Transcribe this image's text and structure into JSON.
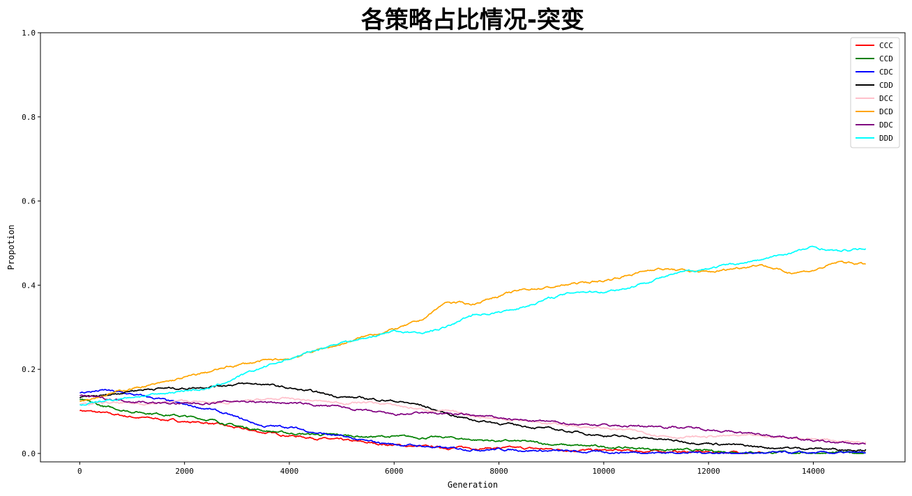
{
  "chart_data": {
    "type": "line",
    "title": "各策略占比情况-突变",
    "xlabel": "Generation",
    "ylabel": "Propotion",
    "xlim": [
      -750,
      15750
    ],
    "ylim": [
      -0.02,
      1.0
    ],
    "xticks": [
      0,
      2000,
      4000,
      6000,
      8000,
      10000,
      12000,
      14000
    ],
    "yticks": [
      0.0,
      0.2,
      0.4,
      0.6,
      0.8,
      1.0
    ],
    "xtick_labels": [
      "0",
      "2000",
      "4000",
      "6000",
      "8000",
      "10000",
      "12000",
      "14000"
    ],
    "ytick_labels": [
      "0.0",
      "0.2",
      "0.4",
      "0.6",
      "0.8",
      "1.0"
    ],
    "grid": false,
    "legend_position": "top-right",
    "series": [
      {
        "name": "CCC",
        "color": "#ff0000",
        "x": [
          0,
          500,
          1000,
          1500,
          2000,
          2500,
          3000,
          3500,
          4000,
          4500,
          5000,
          5500,
          6000,
          6500,
          7000,
          7500,
          8000,
          8500,
          9000,
          9500,
          10000,
          10500,
          11000,
          11500,
          12000,
          12500,
          13000
        ],
        "y": [
          0.103,
          0.095,
          0.087,
          0.082,
          0.076,
          0.072,
          0.06,
          0.05,
          0.043,
          0.037,
          0.031,
          0.025,
          0.02,
          0.016,
          0.014,
          0.013,
          0.013,
          0.012,
          0.01,
          0.008,
          0.007,
          0.006,
          0.005,
          0.004,
          0.003,
          0.003,
          0.002
        ]
      },
      {
        "name": "CCD",
        "color": "#008000",
        "x": [
          0,
          500,
          1000,
          1500,
          2000,
          2500,
          3000,
          3500,
          4000,
          4500,
          5000,
          5500,
          6000,
          6500,
          7000,
          7500,
          8000,
          8500,
          9000,
          9500,
          10000,
          10500,
          11000,
          11500,
          12000,
          12500,
          13000,
          13500,
          14000,
          14500,
          15000
        ],
        "y": [
          0.128,
          0.11,
          0.1,
          0.095,
          0.088,
          0.08,
          0.065,
          0.055,
          0.048,
          0.045,
          0.043,
          0.04,
          0.04,
          0.038,
          0.038,
          0.033,
          0.03,
          0.028,
          0.022,
          0.018,
          0.016,
          0.013,
          0.01,
          0.008,
          0.006,
          0.004,
          0.003,
          0.002,
          0.002,
          0.001,
          0.001
        ]
      },
      {
        "name": "CDC",
        "color": "#0000ff",
        "x": [
          0,
          500,
          1000,
          1500,
          2000,
          2500,
          3000,
          3500,
          4000,
          4500,
          5000,
          5500,
          6000,
          6500,
          7000,
          7500,
          8000,
          8500,
          9000,
          9500,
          10000,
          10500,
          11000,
          11500,
          12000,
          12500,
          13000,
          13500,
          14000,
          14500,
          15000
        ],
        "y": [
          0.145,
          0.15,
          0.14,
          0.13,
          0.115,
          0.105,
          0.085,
          0.065,
          0.063,
          0.05,
          0.04,
          0.028,
          0.022,
          0.018,
          0.012,
          0.01,
          0.01,
          0.008,
          0.006,
          0.004,
          0.003,
          0.003,
          0.002,
          0.002,
          0.002,
          0.001,
          0.001,
          0.001,
          0.001,
          0.001,
          0.001
        ]
      },
      {
        "name": "CDD",
        "color": "#000000",
        "x": [
          0,
          500,
          1000,
          1500,
          2000,
          2500,
          3000,
          3500,
          4000,
          4500,
          5000,
          5500,
          6000,
          6500,
          7000,
          7500,
          8000,
          8500,
          9000,
          9500,
          10000,
          10500,
          11000,
          11500,
          12000,
          12500,
          13000,
          13500,
          14000,
          14500,
          15000
        ],
        "y": [
          0.132,
          0.138,
          0.15,
          0.155,
          0.155,
          0.16,
          0.165,
          0.165,
          0.155,
          0.145,
          0.135,
          0.13,
          0.125,
          0.115,
          0.095,
          0.08,
          0.072,
          0.065,
          0.058,
          0.05,
          0.043,
          0.038,
          0.035,
          0.028,
          0.025,
          0.02,
          0.015,
          0.013,
          0.012,
          0.01,
          0.01
        ]
      },
      {
        "name": "DCC",
        "color": "#ffc0cb",
        "x": [
          0,
          500,
          1000,
          1500,
          2000,
          2500,
          3000,
          3500,
          4000,
          4500,
          5000,
          5500,
          6000,
          6500,
          7000,
          7500,
          8000,
          8500,
          9000,
          9500,
          10000,
          10500,
          11000,
          11500,
          12000,
          12500,
          13000,
          13500,
          14000,
          14500,
          15000
        ],
        "y": [
          0.115,
          0.12,
          0.118,
          0.12,
          0.125,
          0.12,
          0.122,
          0.128,
          0.13,
          0.125,
          0.12,
          0.122,
          0.115,
          0.105,
          0.1,
          0.09,
          0.082,
          0.078,
          0.07,
          0.065,
          0.06,
          0.055,
          0.045,
          0.038,
          0.04,
          0.042,
          0.04,
          0.038,
          0.035,
          0.03,
          0.028
        ]
      },
      {
        "name": "DCD",
        "color": "#ffa500",
        "x": [
          0,
          500,
          1000,
          1500,
          2000,
          2500,
          3000,
          3500,
          4000,
          4500,
          5000,
          5500,
          6000,
          6500,
          7000,
          7500,
          8000,
          8500,
          9000,
          9500,
          10000,
          10500,
          11000,
          11500,
          12000,
          12500,
          13000,
          13500,
          14000,
          14500,
          15000
        ],
        "y": [
          0.125,
          0.14,
          0.155,
          0.165,
          0.18,
          0.195,
          0.21,
          0.22,
          0.225,
          0.245,
          0.26,
          0.28,
          0.295,
          0.315,
          0.36,
          0.355,
          0.375,
          0.39,
          0.395,
          0.405,
          0.41,
          0.425,
          0.44,
          0.435,
          0.43,
          0.44,
          0.45,
          0.43,
          0.435,
          0.455,
          0.45
        ]
      },
      {
        "name": "DDC",
        "color": "#800080",
        "x": [
          0,
          500,
          1000,
          1500,
          2000,
          2500,
          3000,
          3500,
          4000,
          4500,
          5000,
          5500,
          6000,
          6500,
          7000,
          7500,
          8000,
          8500,
          9000,
          9500,
          10000,
          10500,
          11000,
          11500,
          12000,
          12500,
          13000,
          13500,
          14000,
          14500,
          15000
        ],
        "y": [
          0.138,
          0.13,
          0.125,
          0.12,
          0.118,
          0.12,
          0.125,
          0.122,
          0.12,
          0.115,
          0.11,
          0.1,
          0.092,
          0.095,
          0.095,
          0.09,
          0.085,
          0.078,
          0.075,
          0.07,
          0.068,
          0.065,
          0.065,
          0.062,
          0.058,
          0.05,
          0.045,
          0.04,
          0.03,
          0.025,
          0.022
        ]
      },
      {
        "name": "DDD",
        "color": "#00ffff",
        "x": [
          0,
          500,
          1000,
          1500,
          2000,
          2500,
          3000,
          3500,
          4000,
          4500,
          5000,
          5500,
          6000,
          6500,
          7000,
          7500,
          8000,
          8500,
          9000,
          9500,
          10000,
          10500,
          11000,
          11500,
          12000,
          12500,
          13000,
          13500,
          14000,
          14500,
          15000
        ],
        "y": [
          0.115,
          0.125,
          0.135,
          0.14,
          0.15,
          0.155,
          0.18,
          0.205,
          0.225,
          0.245,
          0.265,
          0.275,
          0.292,
          0.285,
          0.3,
          0.33,
          0.335,
          0.35,
          0.37,
          0.385,
          0.385,
          0.395,
          0.415,
          0.43,
          0.44,
          0.45,
          0.46,
          0.475,
          0.49,
          0.48,
          0.487
        ]
      }
    ]
  }
}
